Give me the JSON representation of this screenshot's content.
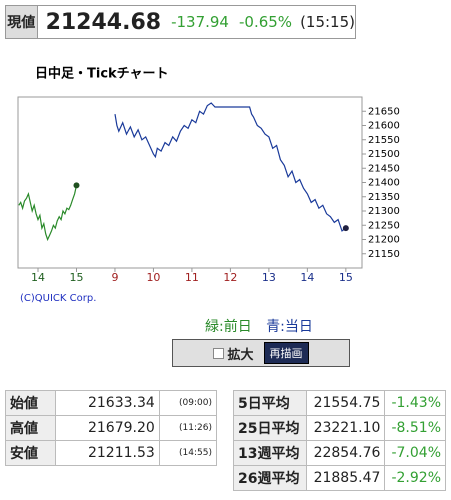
{
  "header": {
    "label": "現値",
    "price": "21244.68",
    "change": "-137.94",
    "change_pct": "-0.65%",
    "time": "(15:15)"
  },
  "chart_data": {
    "type": "line",
    "title": "日中足・Tickチャート",
    "copyright": "(C)QUICK Corp.",
    "xlim": [
      -0.52,
      8.42
    ],
    "ylim": [
      21100,
      21700
    ],
    "xticks": [
      {
        "value": 0,
        "label": "14"
      },
      {
        "value": 1,
        "label": "15"
      },
      {
        "value": 2,
        "label": "9"
      },
      {
        "value": 3,
        "label": "10"
      },
      {
        "value": 4,
        "label": "11"
      },
      {
        "value": 5,
        "label": "12"
      },
      {
        "value": 6,
        "label": "13"
      },
      {
        "value": 7,
        "label": "14"
      },
      {
        "value": 8,
        "label": "15"
      }
    ],
    "xtick_colors": [
      "#1f5f1f",
      "#1f5f1f",
      "#a02020",
      "#a02020",
      "#a02020",
      "#a02020",
      "#1a2f8a",
      "#1a2f8a",
      "#1a2f8a"
    ],
    "yticks": [
      21150,
      21200,
      21250,
      21300,
      21350,
      21400,
      21450,
      21500,
      21550,
      21600,
      21650
    ],
    "series": [
      {
        "name": "緑:前日",
        "color": "#2a8a2a",
        "x": [
          -0.5,
          -0.45,
          -0.4,
          -0.35,
          -0.3,
          -0.25,
          -0.2,
          -0.15,
          -0.1,
          -0.05,
          0,
          0.05,
          0.1,
          0.15,
          0.2,
          0.25,
          0.3,
          0.35,
          0.4,
          0.45,
          0.5,
          0.55,
          0.6,
          0.65,
          0.7,
          0.75,
          0.8,
          0.85,
          0.9,
          0.95,
          1.0
        ],
        "values": [
          21320,
          21330,
          21310,
          21335,
          21345,
          21360,
          21330,
          21300,
          21320,
          21290,
          21270,
          21285,
          21240,
          21255,
          21220,
          21200,
          21215,
          21230,
          21250,
          21240,
          21265,
          21280,
          21270,
          21300,
          21290,
          21310,
          21305,
          21320,
          21340,
          21360,
          21390
        ]
      },
      {
        "name": "青:当日",
        "color": "#1a3a9a",
        "x": [
          2.0,
          2.05,
          2.1,
          2.2,
          2.3,
          2.4,
          2.5,
          2.6,
          2.7,
          2.8,
          2.9,
          3.0,
          3.05,
          3.1,
          3.2,
          3.3,
          3.4,
          3.5,
          3.6,
          3.7,
          3.8,
          3.9,
          4.0,
          4.1,
          4.2,
          4.3,
          4.4,
          4.5,
          4.6,
          5.5,
          5.55,
          5.6,
          5.7,
          5.8,
          5.9,
          6.0,
          6.1,
          6.2,
          6.3,
          6.4,
          6.5,
          6.6,
          6.7,
          6.8,
          6.9,
          7.0,
          7.1,
          7.2,
          7.3,
          7.4,
          7.5,
          7.6,
          7.7,
          7.8,
          7.9,
          8.0
        ],
        "values": [
          21640,
          21600,
          21580,
          21610,
          21570,
          21595,
          21560,
          21585,
          21550,
          21560,
          21530,
          21500,
          21490,
          21520,
          21510,
          21540,
          21530,
          21560,
          21545,
          21580,
          21600,
          21590,
          21620,
          21610,
          21650,
          21640,
          21670,
          21679,
          21665,
          21665,
          21640,
          21630,
          21600,
          21590,
          21570,
          21560,
          21520,
          21530,
          21480,
          21460,
          21420,
          21440,
          21400,
          21410,
          21380,
          21360,
          21330,
          21340,
          21310,
          21320,
          21290,
          21280,
          21260,
          21270,
          21230,
          21240
        ]
      }
    ]
  },
  "controls": {
    "checkbox_label": "拡大",
    "button": "再描画"
  },
  "ohlc": {
    "rows": [
      [
        "始値",
        "21633.34",
        "(09:00)"
      ],
      [
        "高値",
        "21679.20",
        "(11:26)"
      ],
      [
        "安値",
        "21211.53",
        "(14:55)"
      ]
    ]
  },
  "averages": {
    "rows": [
      [
        "5日平均",
        "21554.75",
        "-1.43%"
      ],
      [
        "25日平均",
        "23221.10",
        "-8.51%"
      ],
      [
        "13週平均",
        "22854.76",
        "-7.04%"
      ],
      [
        "26週平均",
        "21885.47",
        "-2.92%"
      ]
    ]
  }
}
